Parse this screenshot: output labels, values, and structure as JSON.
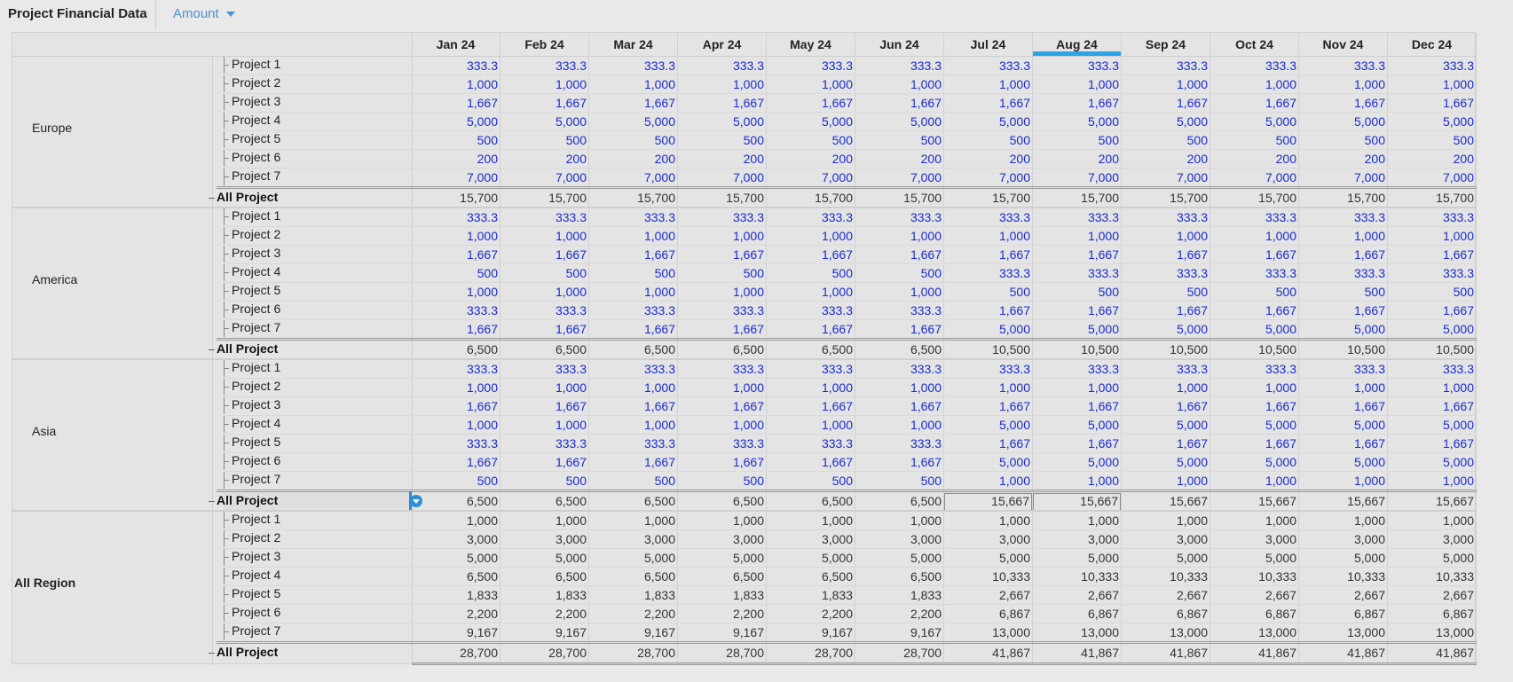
{
  "app": {
    "title": "Project Financial Data",
    "measure_label": "Amount",
    "measure_icon": "chevron-down-icon"
  },
  "colors": {
    "input": "#1a2bd6",
    "total": "#333333",
    "accent": "#2aa6e8",
    "header_bg": "#e4e4e4"
  },
  "columns": [
    "Jan 24",
    "Feb 24",
    "Mar 24",
    "Apr 24",
    "May 24",
    "Jun 24",
    "Jul 24",
    "Aug 24",
    "Sep 24",
    "Oct 24",
    "Nov 24",
    "Dec 24"
  ],
  "selected_column": "Aug 24",
  "total_label": "All Project",
  "regions": [
    {
      "name": "Europe",
      "is_total": false,
      "rows": [
        {
          "label": "Project 1",
          "values": [
            "333.3",
            "333.3",
            "333.3",
            "333.3",
            "333.3",
            "333.3",
            "333.3",
            "333.3",
            "333.3",
            "333.3",
            "333.3",
            "333.3"
          ]
        },
        {
          "label": "Project 2",
          "values": [
            "1,000",
            "1,000",
            "1,000",
            "1,000",
            "1,000",
            "1,000",
            "1,000",
            "1,000",
            "1,000",
            "1,000",
            "1,000",
            "1,000"
          ]
        },
        {
          "label": "Project 3",
          "values": [
            "1,667",
            "1,667",
            "1,667",
            "1,667",
            "1,667",
            "1,667",
            "1,667",
            "1,667",
            "1,667",
            "1,667",
            "1,667",
            "1,667"
          ]
        },
        {
          "label": "Project 4",
          "values": [
            "5,000",
            "5,000",
            "5,000",
            "5,000",
            "5,000",
            "5,000",
            "5,000",
            "5,000",
            "5,000",
            "5,000",
            "5,000",
            "5,000"
          ]
        },
        {
          "label": "Project 5",
          "values": [
            "500",
            "500",
            "500",
            "500",
            "500",
            "500",
            "500",
            "500",
            "500",
            "500",
            "500",
            "500"
          ]
        },
        {
          "label": "Project 6",
          "values": [
            "200",
            "200",
            "200",
            "200",
            "200",
            "200",
            "200",
            "200",
            "200",
            "200",
            "200",
            "200"
          ]
        },
        {
          "label": "Project 7",
          "values": [
            "7,000",
            "7,000",
            "7,000",
            "7,000",
            "7,000",
            "7,000",
            "7,000",
            "7,000",
            "7,000",
            "7,000",
            "7,000",
            "7,000"
          ]
        }
      ],
      "total": [
        "15,700",
        "15,700",
        "15,700",
        "15,700",
        "15,700",
        "15,700",
        "15,700",
        "15,700",
        "15,700",
        "15,700",
        "15,700",
        "15,700"
      ]
    },
    {
      "name": "America",
      "is_total": false,
      "rows": [
        {
          "label": "Project 1",
          "values": [
            "333.3",
            "333.3",
            "333.3",
            "333.3",
            "333.3",
            "333.3",
            "333.3",
            "333.3",
            "333.3",
            "333.3",
            "333.3",
            "333.3"
          ]
        },
        {
          "label": "Project 2",
          "values": [
            "1,000",
            "1,000",
            "1,000",
            "1,000",
            "1,000",
            "1,000",
            "1,000",
            "1,000",
            "1,000",
            "1,000",
            "1,000",
            "1,000"
          ]
        },
        {
          "label": "Project 3",
          "values": [
            "1,667",
            "1,667",
            "1,667",
            "1,667",
            "1,667",
            "1,667",
            "1,667",
            "1,667",
            "1,667",
            "1,667",
            "1,667",
            "1,667"
          ]
        },
        {
          "label": "Project 4",
          "values": [
            "500",
            "500",
            "500",
            "500",
            "500",
            "500",
            "333.3",
            "333.3",
            "333.3",
            "333.3",
            "333.3",
            "333.3"
          ]
        },
        {
          "label": "Project 5",
          "values": [
            "1,000",
            "1,000",
            "1,000",
            "1,000",
            "1,000",
            "1,000",
            "500",
            "500",
            "500",
            "500",
            "500",
            "500"
          ]
        },
        {
          "label": "Project 6",
          "values": [
            "333.3",
            "333.3",
            "333.3",
            "333.3",
            "333.3",
            "333.3",
            "1,667",
            "1,667",
            "1,667",
            "1,667",
            "1,667",
            "1,667"
          ]
        },
        {
          "label": "Project 7",
          "values": [
            "1,667",
            "1,667",
            "1,667",
            "1,667",
            "1,667",
            "1,667",
            "5,000",
            "5,000",
            "5,000",
            "5,000",
            "5,000",
            "5,000"
          ]
        }
      ],
      "total": [
        "6,500",
        "6,500",
        "6,500",
        "6,500",
        "6,500",
        "6,500",
        "10,500",
        "10,500",
        "10,500",
        "10,500",
        "10,500",
        "10,500"
      ]
    },
    {
      "name": "Asia",
      "is_total": false,
      "rows": [
        {
          "label": "Project 1",
          "values": [
            "333.3",
            "333.3",
            "333.3",
            "333.3",
            "333.3",
            "333.3",
            "333.3",
            "333.3",
            "333.3",
            "333.3",
            "333.3",
            "333.3"
          ]
        },
        {
          "label": "Project 2",
          "values": [
            "1,000",
            "1,000",
            "1,000",
            "1,000",
            "1,000",
            "1,000",
            "1,000",
            "1,000",
            "1,000",
            "1,000",
            "1,000",
            "1,000"
          ]
        },
        {
          "label": "Project 3",
          "values": [
            "1,667",
            "1,667",
            "1,667",
            "1,667",
            "1,667",
            "1,667",
            "1,667",
            "1,667",
            "1,667",
            "1,667",
            "1,667",
            "1,667"
          ]
        },
        {
          "label": "Project 4",
          "values": [
            "1,000",
            "1,000",
            "1,000",
            "1,000",
            "1,000",
            "1,000",
            "5,000",
            "5,000",
            "5,000",
            "5,000",
            "5,000",
            "5,000"
          ]
        },
        {
          "label": "Project 5",
          "values": [
            "333.3",
            "333.3",
            "333.3",
            "333.3",
            "333.3",
            "333.3",
            "1,667",
            "1,667",
            "1,667",
            "1,667",
            "1,667",
            "1,667"
          ]
        },
        {
          "label": "Project 6",
          "values": [
            "1,667",
            "1,667",
            "1,667",
            "1,667",
            "1,667",
            "1,667",
            "5,000",
            "5,000",
            "5,000",
            "5,000",
            "5,000",
            "5,000"
          ]
        },
        {
          "label": "Project 7",
          "values": [
            "500",
            "500",
            "500",
            "500",
            "500",
            "500",
            "1,000",
            "1,000",
            "1,000",
            "1,000",
            "1,000",
            "1,000"
          ]
        }
      ],
      "total": [
        "6,500",
        "6,500",
        "6,500",
        "6,500",
        "6,500",
        "6,500",
        "15,667",
        "15,667",
        "15,667",
        "15,667",
        "15,667",
        "15,667"
      ],
      "total_boxed": [
        "Jul 24",
        "Aug 24"
      ],
      "focused_total_row": true
    },
    {
      "name": "All Region",
      "is_total": true,
      "rows": [
        {
          "label": "Project 1",
          "values": [
            "1,000",
            "1,000",
            "1,000",
            "1,000",
            "1,000",
            "1,000",
            "1,000",
            "1,000",
            "1,000",
            "1,000",
            "1,000",
            "1,000"
          ]
        },
        {
          "label": "Project 2",
          "values": [
            "3,000",
            "3,000",
            "3,000",
            "3,000",
            "3,000",
            "3,000",
            "3,000",
            "3,000",
            "3,000",
            "3,000",
            "3,000",
            "3,000"
          ]
        },
        {
          "label": "Project 3",
          "values": [
            "5,000",
            "5,000",
            "5,000",
            "5,000",
            "5,000",
            "5,000",
            "5,000",
            "5,000",
            "5,000",
            "5,000",
            "5,000",
            "5,000"
          ]
        },
        {
          "label": "Project 4",
          "values": [
            "6,500",
            "6,500",
            "6,500",
            "6,500",
            "6,500",
            "6,500",
            "10,333",
            "10,333",
            "10,333",
            "10,333",
            "10,333",
            "10,333"
          ]
        },
        {
          "label": "Project 5",
          "values": [
            "1,833",
            "1,833",
            "1,833",
            "1,833",
            "1,833",
            "1,833",
            "2,667",
            "2,667",
            "2,667",
            "2,667",
            "2,667",
            "2,667"
          ]
        },
        {
          "label": "Project 6",
          "values": [
            "2,200",
            "2,200",
            "2,200",
            "2,200",
            "2,200",
            "2,200",
            "6,867",
            "6,867",
            "6,867",
            "6,867",
            "6,867",
            "6,867"
          ]
        },
        {
          "label": "Project 7",
          "values": [
            "9,167",
            "9,167",
            "9,167",
            "9,167",
            "9,167",
            "9,167",
            "13,000",
            "13,000",
            "13,000",
            "13,000",
            "13,000",
            "13,000"
          ]
        }
      ],
      "total": [
        "28,700",
        "28,700",
        "28,700",
        "28,700",
        "28,700",
        "28,700",
        "41,867",
        "41,867",
        "41,867",
        "41,867",
        "41,867",
        "41,867"
      ]
    }
  ]
}
